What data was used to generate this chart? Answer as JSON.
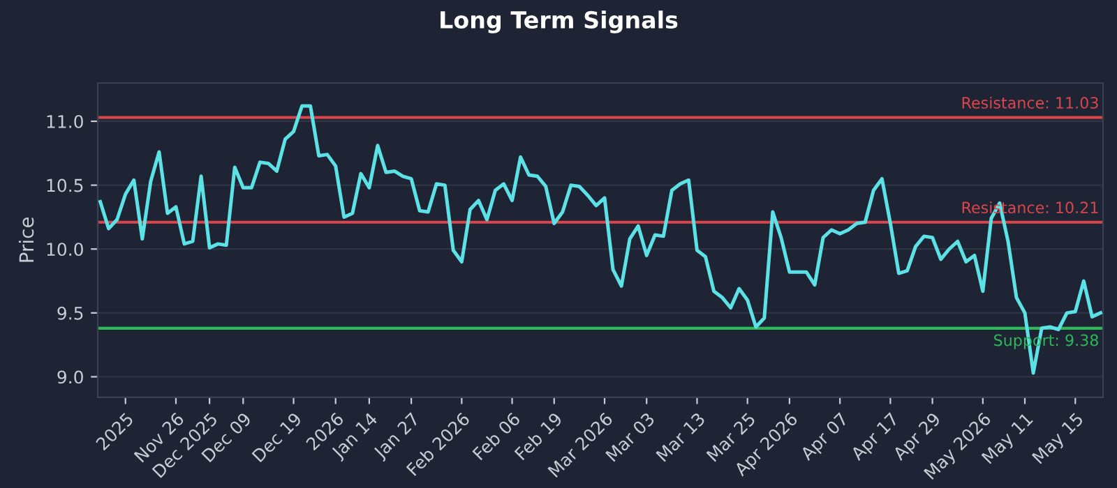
{
  "chart_data": {
    "type": "line",
    "title": "Long Term Signals",
    "ylabel": "Price",
    "categories": [
      null,
      null,
      null,
      "2025",
      null,
      null,
      null,
      null,
      null,
      "Nov 26",
      null,
      null,
      null,
      "Dec 2025",
      null,
      null,
      null,
      "Dec 09",
      null,
      null,
      null,
      null,
      null,
      "Dec 19",
      null,
      null,
      null,
      null,
      "2026",
      null,
      null,
      null,
      "Jan 14",
      null,
      null,
      null,
      null,
      "Jan 27",
      null,
      null,
      null,
      null,
      null,
      "Feb 2026",
      null,
      null,
      null,
      null,
      null,
      "Feb 06",
      null,
      null,
      null,
      null,
      "Feb 19",
      null,
      null,
      null,
      null,
      null,
      "Mar 2026",
      null,
      null,
      null,
      null,
      "Mar 03",
      null,
      null,
      null,
      null,
      null,
      "Mar 13",
      null,
      null,
      null,
      null,
      null,
      "Mar 25",
      null,
      null,
      null,
      null,
      "Apr 2026",
      null,
      null,
      null,
      null,
      null,
      "Apr 07",
      null,
      null,
      null,
      null,
      null,
      "Apr 17",
      null,
      null,
      null,
      null,
      "Apr 29",
      null,
      null,
      null,
      null,
      null,
      "May 2026",
      null,
      null,
      null,
      null,
      "May 11",
      null,
      null,
      null,
      null,
      null,
      "May 15",
      null,
      null,
      null
    ],
    "series": [
      {
        "color": "#5ce1e6",
        "values": [
          10.37,
          10.16,
          10.23,
          10.43,
          10.54,
          10.08,
          10.53,
          10.76,
          10.28,
          10.33,
          10.04,
          10.06,
          10.57,
          10.01,
          10.04,
          10.03,
          10.64,
          10.48,
          10.48,
          10.68,
          10.67,
          10.61,
          10.86,
          10.92,
          11.12,
          11.12,
          10.73,
          10.74,
          10.65,
          10.25,
          10.28,
          10.59,
          10.48,
          10.81,
          10.6,
          10.61,
          10.57,
          10.55,
          10.3,
          10.29,
          10.51,
          10.5,
          9.99,
          9.9,
          10.31,
          10.38,
          10.23,
          10.46,
          10.51,
          10.38,
          10.72,
          10.58,
          10.57,
          10.49,
          10.2,
          10.29,
          10.5,
          10.49,
          10.42,
          10.34,
          10.4,
          9.84,
          9.71,
          10.08,
          10.18,
          9.95,
          10.11,
          10.1,
          10.46,
          10.51,
          10.54,
          9.99,
          9.94,
          9.67,
          9.62,
          9.54,
          9.69,
          9.6,
          9.39,
          9.46,
          10.29,
          10.09,
          9.82,
          9.82,
          9.82,
          9.72,
          10.09,
          10.15,
          10.12,
          10.15,
          10.2,
          10.21,
          10.46,
          10.55,
          10.2,
          9.81,
          9.83,
          10.02,
          10.1,
          10.09,
          9.92,
          10.0,
          10.06,
          9.9,
          9.95,
          9.67,
          10.24,
          10.36,
          10.06,
          9.62,
          9.5,
          9.03,
          9.38,
          9.39,
          9.37,
          9.5,
          9.51,
          9.75,
          9.47,
          9.5
        ]
      }
    ],
    "ylim": [
      8.84,
      11.3
    ],
    "yticks": [
      {
        "value": 9,
        "label": "9.0"
      },
      9.5,
      {
        "value": 10,
        "label": "10.0"
      },
      10.5,
      {
        "value": 11,
        "label": "11.0"
      }
    ],
    "grid": "y",
    "ref_lines": [
      {
        "axis": "y",
        "value": 11.03,
        "label": "Resistance: 11.03",
        "color": "#d9464b"
      },
      {
        "axis": "y",
        "value": 10.21,
        "label": "Resistance: 10.21",
        "color": "#d9464b"
      },
      {
        "axis": "y",
        "value": 9.38,
        "label": "Support: 9.38",
        "color": "#2eb85c"
      }
    ]
  }
}
